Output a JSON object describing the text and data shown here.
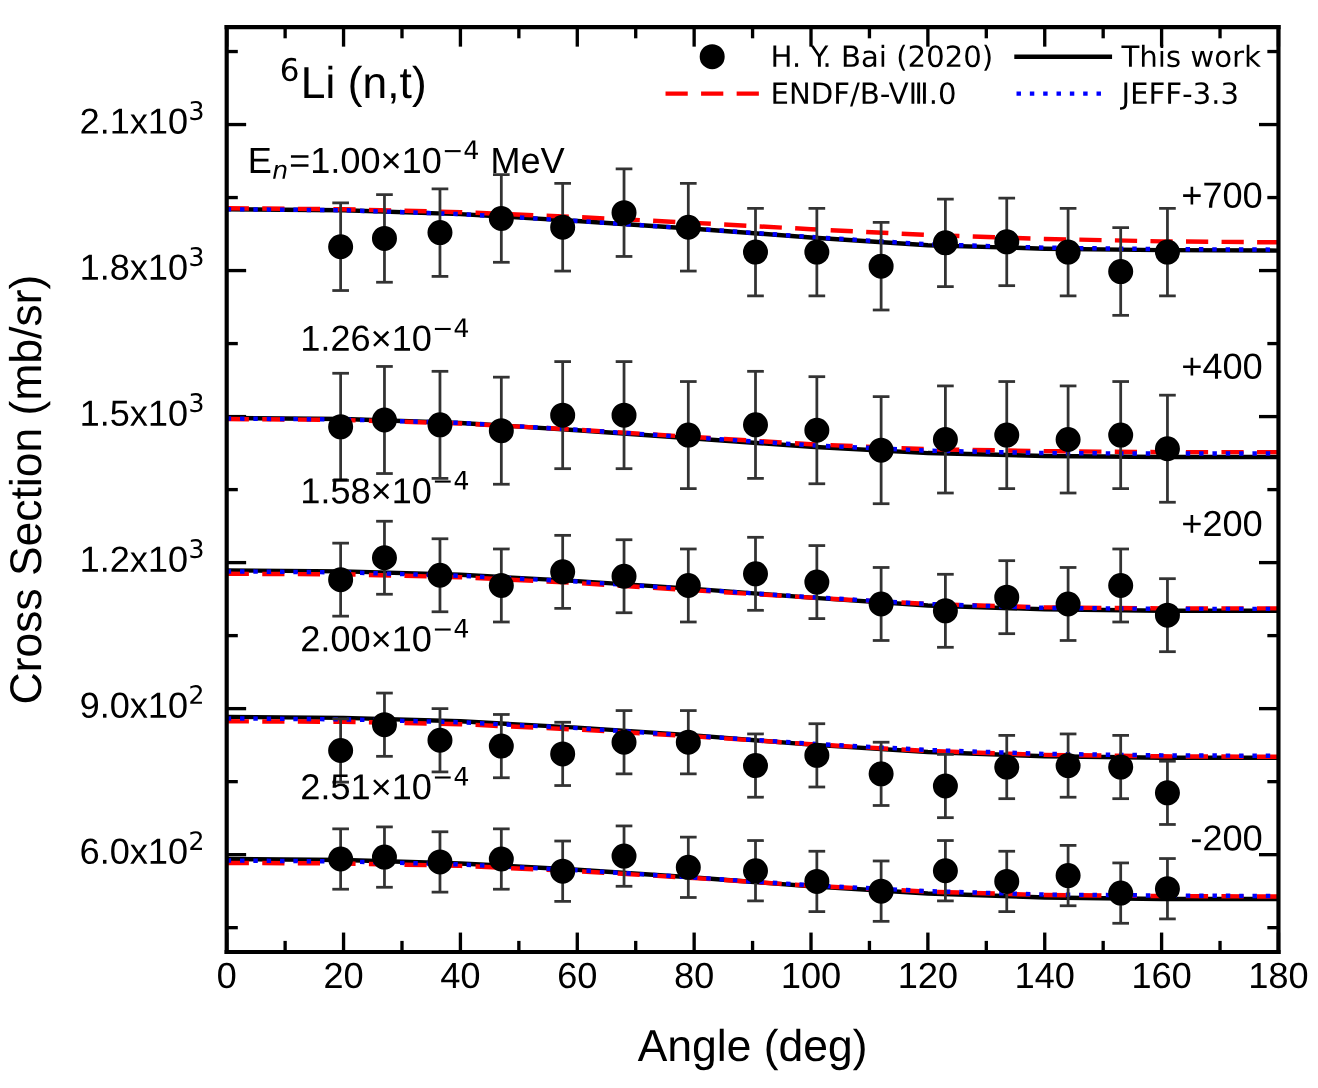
{
  "chart_data": {
    "type": "scatter",
    "xlabel": "Angle (deg)",
    "ylabel": "Cross Section (mb/sr)",
    "xlim": [
      0,
      180
    ],
    "xticks": [
      0,
      20,
      40,
      60,
      80,
      100,
      120,
      140,
      160,
      180
    ],
    "ylim": [
      400,
      2300
    ],
    "yticks": [
      {
        "value": 600,
        "label": "6.0x10$^{2}$"
      },
      {
        "value": 900,
        "label": "9.0x10$^{2}$"
      },
      {
        "value": 1200,
        "label": "1.2x10$^{3}$"
      },
      {
        "value": 1500,
        "label": "1.5x10$^{3}$"
      },
      {
        "value": 1800,
        "label": "1.8x10$^{3}$"
      },
      {
        "value": 2100,
        "label": "2.1x10$^{3}$"
      }
    ],
    "grid": false,
    "legend": "top right",
    "annotations": [
      "$^{6}$Li (n,t)",
      "E$_{n}$=1.00×10$^{−4}$ MeV",
      "1.26×10$^{−4}$",
      "1.58×10$^{−4}$",
      "2.00×10$^{−4}$",
      "2.51×10$^{−4}$",
      "+700",
      "+400",
      "+200",
      "-200"
    ],
    "series": [
      {
        "name": "H. Y. Bai (2020)",
        "marker": "circle",
        "color": "#000000",
        "x": [
          19.5,
          27,
          36.5,
          47,
          57.5,
          68,
          79,
          90.5,
          101,
          112,
          123,
          133.5,
          144,
          153,
          161
        ],
        "values": [
          1849,
          1866,
          1878,
          1907,
          1889,
          1919,
          1889,
          1838,
          1838,
          1809,
          1857,
          1859,
          1838,
          1798,
          1838
        ],
        "errors": [
          90,
          90,
          90,
          90,
          90,
          90,
          90,
          90,
          90,
          90,
          90,
          90,
          90,
          90,
          90
        ]
      },
      {
        "type": "scatter",
        "marker": "circle",
        "color": "#000000",
        "x": [
          19.5,
          27,
          36.5,
          47,
          57.5,
          68,
          79,
          90.5,
          101,
          112,
          123,
          133.5,
          144,
          153,
          161
        ],
        "values": [
          1479,
          1493,
          1483,
          1471,
          1503,
          1503,
          1462,
          1483,
          1472,
          1431,
          1453,
          1462,
          1453,
          1462,
          1434
        ],
        "errors": [
          110,
          110,
          110,
          110,
          110,
          110,
          110,
          110,
          110,
          110,
          110,
          110,
          110,
          110,
          110
        ]
      },
      {
        "type": "scatter",
        "marker": "circle",
        "color": "#000000",
        "x": [
          19.5,
          27,
          36.5,
          47,
          57.5,
          68,
          79,
          90.5,
          101,
          112,
          123,
          133.5,
          144,
          153,
          161
        ],
        "values": [
          1165,
          1210,
          1174,
          1153,
          1181,
          1172,
          1153,
          1177,
          1160,
          1115,
          1101,
          1129,
          1115,
          1153,
          1092
        ],
        "errors": [
          75,
          75,
          75,
          75,
          75,
          75,
          75,
          75,
          75,
          75,
          75,
          75,
          75,
          75,
          75
        ]
      },
      {
        "type": "scatter",
        "marker": "circle",
        "color": "#000000",
        "x": [
          19.5,
          27,
          36.5,
          47,
          57.5,
          68,
          79,
          90.5,
          101,
          112,
          123,
          133.5,
          144,
          153,
          161
        ],
        "values": [
          814,
          867,
          835,
          823,
          807,
          831,
          831,
          783,
          804,
          766,
          741,
          780,
          783,
          780,
          727
        ],
        "errors": [
          65,
          65,
          65,
          65,
          65,
          65,
          65,
          65,
          65,
          65,
          65,
          65,
          65,
          65,
          65
        ]
      },
      {
        "type": "scatter",
        "marker": "circle",
        "color": "#000000",
        "x": [
          19.5,
          27,
          36.5,
          47,
          57.5,
          68,
          79,
          90.5,
          101,
          112,
          123,
          133.5,
          144,
          153,
          161
        ],
        "values": [
          591,
          595,
          585,
          591,
          566,
          597,
          574,
          567,
          545,
          525,
          567,
          545,
          557,
          521,
          530
        ],
        "errors": [
          62,
          62,
          62,
          62,
          62,
          62,
          62,
          62,
          62,
          62,
          62,
          62,
          62,
          62,
          62
        ]
      },
      {
        "name": "This work",
        "type": "line",
        "line_style": "solid",
        "color": "#000000",
        "x": [
          0,
          20,
          40,
          60,
          80,
          100,
          120,
          140,
          160,
          180
        ],
        "values": [
          1926,
          1924,
          1916,
          1902,
          1886,
          1868,
          1852,
          1845,
          1842,
          1841
        ]
      },
      {
        "type": "line",
        "line_style": "solid",
        "color": "#000000",
        "x": [
          0,
          20,
          40,
          60,
          80,
          100,
          120,
          140,
          160,
          180
        ],
        "values": [
          1497,
          1495,
          1487,
          1472,
          1455,
          1438,
          1425,
          1419,
          1417,
          1417
        ]
      },
      {
        "type": "line",
        "line_style": "solid",
        "color": "#000000",
        "x": [
          0,
          20,
          40,
          60,
          80,
          100,
          120,
          140,
          160,
          180
        ],
        "values": [
          1184,
          1182,
          1175,
          1162,
          1146,
          1128,
          1112,
          1104,
          1101,
          1101
        ]
      },
      {
        "type": "line",
        "line_style": "solid",
        "color": "#000000",
        "x": [
          0,
          20,
          40,
          60,
          80,
          100,
          120,
          140,
          160,
          180
        ],
        "values": [
          883,
          881,
          874,
          861,
          845,
          826,
          811,
          802,
          799,
          799
        ]
      },
      {
        "type": "line",
        "line_style": "solid",
        "color": "#000000",
        "x": [
          0,
          20,
          40,
          60,
          80,
          100,
          120,
          140,
          160,
          180
        ],
        "values": [
          591,
          589,
          582,
          569,
          553,
          535,
          520,
          512,
          509,
          509
        ]
      },
      {
        "name": "ENDF/B-VⅢ.0",
        "type": "line",
        "line_style": "dashed",
        "color": "#ff0000",
        "x": [
          0,
          20,
          40,
          60,
          80,
          100,
          120,
          140,
          160,
          180
        ],
        "values": [
          1928,
          1926,
          1920,
          1910,
          1898,
          1885,
          1873,
          1865,
          1860,
          1858
        ]
      },
      {
        "type": "line",
        "line_style": "dashed",
        "color": "#ff0000",
        "x": [
          0,
          20,
          40,
          60,
          80,
          100,
          120,
          140,
          160,
          180
        ],
        "values": [
          1495,
          1493,
          1486,
          1473,
          1458,
          1443,
          1433,
          1429,
          1427,
          1427
        ]
      },
      {
        "type": "line",
        "line_style": "dashed",
        "color": "#ff0000",
        "x": [
          0,
          20,
          40,
          60,
          80,
          100,
          120,
          140,
          160,
          180
        ],
        "values": [
          1177,
          1176,
          1170,
          1158,
          1143,
          1128,
          1115,
          1108,
          1106,
          1106
        ]
      },
      {
        "type": "line",
        "line_style": "dashed",
        "color": "#ff0000",
        "x": [
          0,
          20,
          40,
          60,
          80,
          100,
          120,
          140,
          160,
          180
        ],
        "values": [
          874,
          873,
          868,
          857,
          843,
          827,
          813,
          805,
          802,
          801
        ]
      },
      {
        "type": "line",
        "line_style": "dashed",
        "color": "#ff0000",
        "x": [
          0,
          20,
          40,
          60,
          80,
          100,
          120,
          140,
          160,
          180
        ],
        "values": [
          583,
          582,
          577,
          566,
          552,
          536,
          524,
          517,
          515,
          514
        ]
      },
      {
        "name": "JEFF-3.3",
        "type": "line",
        "line_style": "dotted",
        "color": "#0000ff",
        "x": [
          0,
          20,
          40,
          60,
          80,
          100,
          120,
          140,
          160,
          180
        ],
        "values": [
          1926,
          1924,
          1916,
          1902,
          1886,
          1869,
          1854,
          1847,
          1844,
          1843
        ]
      },
      {
        "type": "line",
        "line_style": "dotted",
        "color": "#0000ff",
        "x": [
          0,
          20,
          40,
          60,
          80,
          100,
          120,
          140,
          160,
          180
        ],
        "values": [
          1496,
          1494,
          1487,
          1473,
          1457,
          1441,
          1430,
          1425,
          1424,
          1424
        ]
      },
      {
        "type": "line",
        "line_style": "dotted",
        "color": "#0000ff",
        "x": [
          0,
          20,
          40,
          60,
          80,
          100,
          120,
          140,
          160,
          180
        ],
        "values": [
          1182,
          1180,
          1173,
          1161,
          1145,
          1129,
          1115,
          1107,
          1105,
          1105
        ]
      },
      {
        "type": "line",
        "line_style": "dotted",
        "color": "#0000ff",
        "x": [
          0,
          20,
          40,
          60,
          80,
          100,
          120,
          140,
          160,
          180
        ],
        "values": [
          880,
          878,
          872,
          860,
          844,
          828,
          815,
          807,
          804,
          803
        ]
      },
      {
        "type": "line",
        "line_style": "dotted",
        "color": "#0000ff",
        "x": [
          0,
          20,
          40,
          60,
          80,
          100,
          120,
          140,
          160,
          180
        ],
        "values": [
          588,
          586,
          580,
          568,
          553,
          537,
          525,
          518,
          516,
          515
        ]
      }
    ]
  }
}
